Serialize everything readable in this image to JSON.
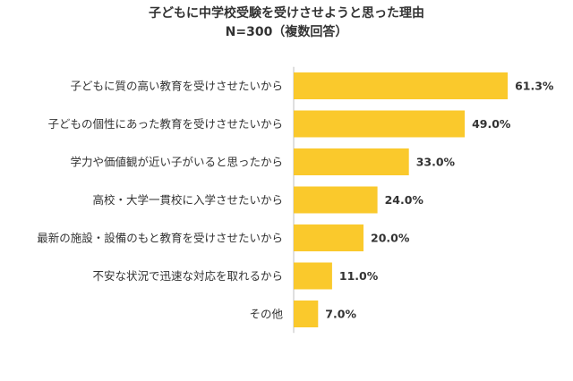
{
  "chart_data": {
    "type": "bar",
    "orientation": "horizontal",
    "title": "子どもに中学校受験を受けさせようと思った理由",
    "subtitle": "N=300（複数回答）",
    "categories": [
      "子どもに質の高い教育を受けさせたいから",
      "子どもの個性にあった教育を受けさせたいから",
      "学力や価値観が近い子がいると思ったから",
      "高校・大学一貫校に入学させたいから",
      "最新の施設・設備のもと教育を受けさせたいから",
      "不安な状況で迅速な対応を取れるから",
      "その他"
    ],
    "values": [
      61.3,
      49.0,
      33.0,
      24.0,
      20.0,
      11.0,
      7.0
    ],
    "value_labels": [
      "61.3%",
      "49.0%",
      "33.0%",
      "24.0%",
      "20.0%",
      "11.0%",
      "7.0%"
    ],
    "unit": "%",
    "bar_color": "#FAC92C",
    "axis_line_color": "#BFBFBF",
    "grid": false,
    "legend": "none"
  }
}
